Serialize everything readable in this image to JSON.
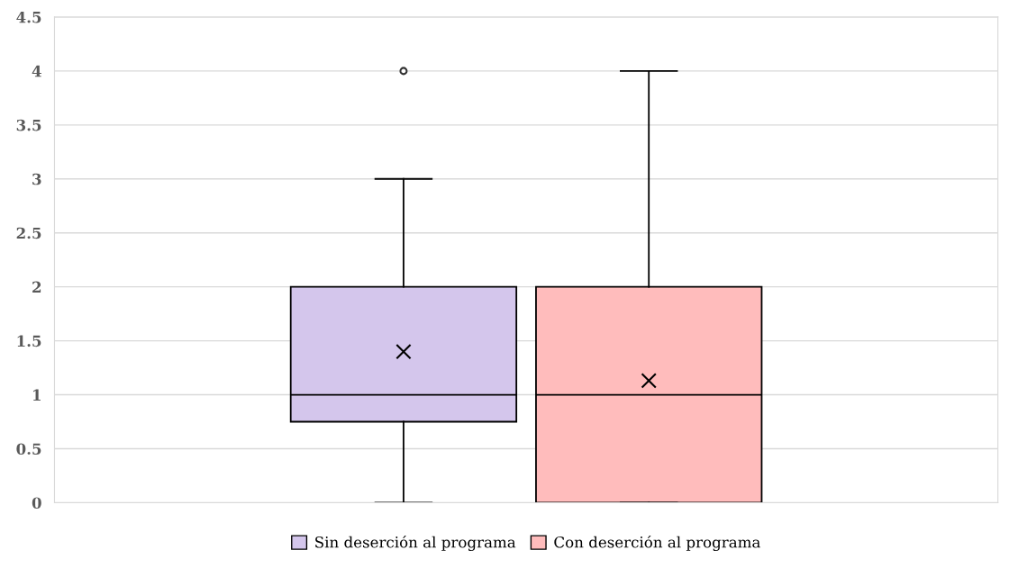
{
  "chart_data": {
    "type": "box",
    "categories": [
      null
    ],
    "series": [
      {
        "name": "Sin deserción al programa",
        "color": "#d4c6ec",
        "boxes": [
          {
            "low": 0,
            "q1": 0.75,
            "median": 1,
            "q3": 2,
            "high": 3,
            "mean": 1.4,
            "outliers": [
              4
            ]
          }
        ]
      },
      {
        "name": "Con deserción al programa",
        "color": "#ffbcbc",
        "boxes": [
          {
            "low": 0,
            "q1": 0,
            "median": 1,
            "q3": 2,
            "high": 4,
            "mean": 1.13
          }
        ]
      }
    ],
    "ylim": [
      0,
      4.5
    ],
    "yticks": [
      0,
      0.5,
      1,
      1.5,
      2,
      2.5,
      3,
      3.5,
      4,
      4.5
    ],
    "grid": "y",
    "legend": "bottom",
    "marker": "cross"
  }
}
